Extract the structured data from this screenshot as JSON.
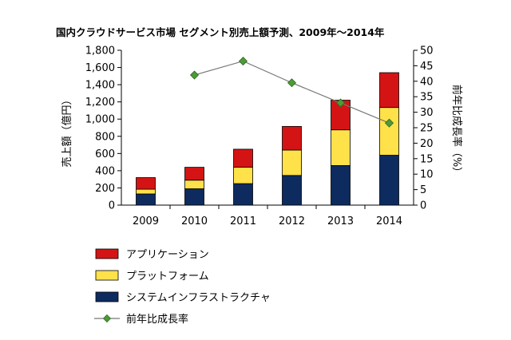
{
  "chart_data": {
    "type": "bar",
    "title": "国内クラウドサービス市場 セグメント別売上額予測、2009年～2014年",
    "ylabel": "売上額（億円）",
    "y2label": "前年比成長率（%）",
    "categories": [
      "2009",
      "2010",
      "2011",
      "2012",
      "2013",
      "2014"
    ],
    "ylim": [
      0,
      1800
    ],
    "yticks": [
      "0",
      "200",
      "400",
      "600",
      "800",
      "1,000",
      "1,200",
      "1,400",
      "1,600",
      "1,800"
    ],
    "y2lim": [
      0,
      50
    ],
    "y2ticks": [
      "0",
      "5",
      "10",
      "15",
      "20",
      "25",
      "30",
      "35",
      "40",
      "45",
      "50"
    ],
    "stacked": true,
    "grid": false,
    "legend_position": "bottom",
    "series": [
      {
        "name": "システムインフラストラクチャ",
        "kind": "bar",
        "color": "#0d2b5e",
        "values": [
          130,
          190,
          250,
          345,
          460,
          580
        ]
      },
      {
        "name": "プラットフォーム",
        "kind": "bar",
        "color": "#ffe14a",
        "values": [
          55,
          100,
          190,
          295,
          415,
          555
        ]
      },
      {
        "name": "アプリケーション",
        "kind": "bar",
        "color": "#d41414",
        "values": [
          135,
          150,
          210,
          275,
          345,
          405
        ]
      },
      {
        "name": "前年比成長率",
        "kind": "line",
        "axis": "right",
        "color": "#4e9a37",
        "values": [
          null,
          42,
          46.5,
          39.5,
          33,
          26.5
        ]
      }
    ],
    "legend_order": [
      "アプリケーション",
      "プラットフォーム",
      "システムインフラストラクチャ",
      "前年比成長率"
    ]
  }
}
